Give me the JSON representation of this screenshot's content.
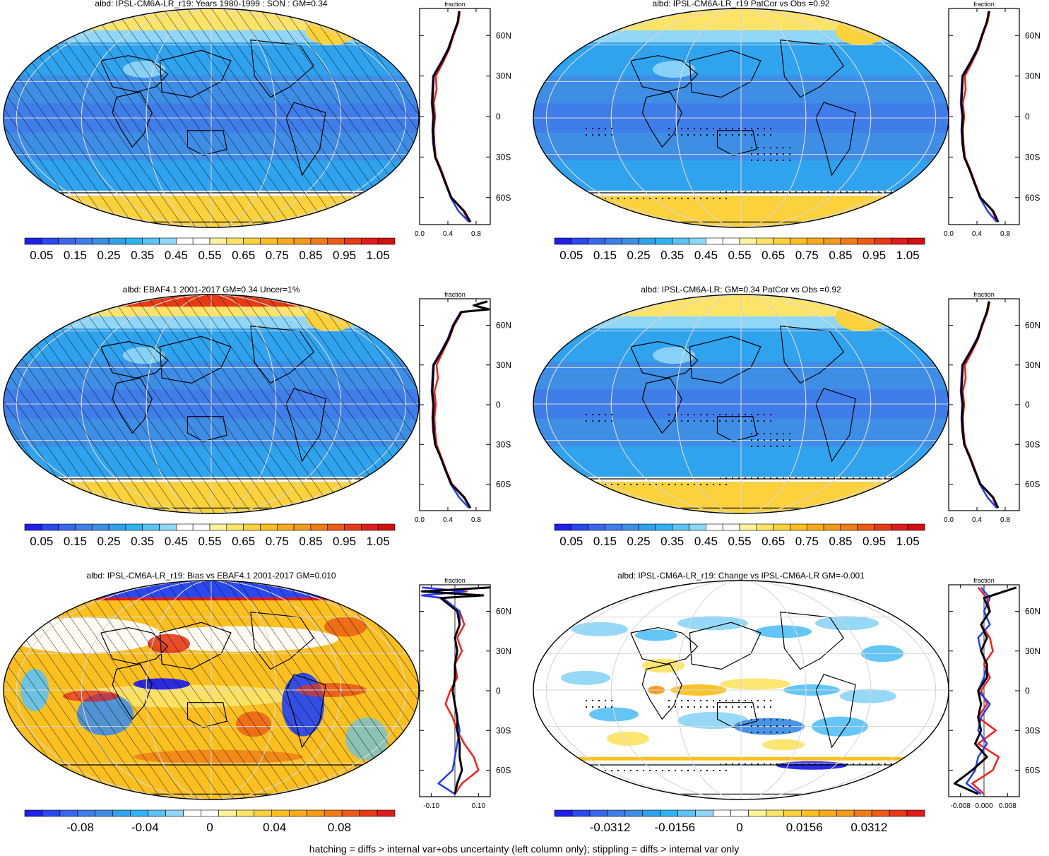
{
  "footer": "hatching = diffs > internal var+obs uncertainty (left column only); stippling = diffs > internal var only",
  "colors": {
    "ocean_low": "#3f7de8",
    "ocean_mid": "#2fa3ee",
    "ocean_light": "#8ccff6",
    "ice": "#fbd23c",
    "warm": "#f39a1a",
    "hot": "#e01b1b",
    "line_red": "#ff1a1a",
    "line_blue": "#1f3dff",
    "line_black": "#000000"
  },
  "colorbars": {
    "abs": {
      "colors": [
        "#2020e8",
        "#2a48ee",
        "#3a66ee",
        "#3f7de8",
        "#3e8ee6",
        "#2fa3ee",
        "#2db3f2",
        "#5cc3f5",
        "#8fd6f7",
        "#ffffff",
        "#ffffff",
        "#fff29c",
        "#fde469",
        "#fbd23c",
        "#fbc020",
        "#f9aa1a",
        "#f39a1a",
        "#f07c16",
        "#ec5a14",
        "#e63a14",
        "#e01b1b",
        "#d40f0f"
      ],
      "labels": [
        "0.05",
        "0.15",
        "0.25",
        "0.35",
        "0.45",
        "0.55",
        "0.65",
        "0.75",
        "0.85",
        "0.95",
        "1.05"
      ]
    },
    "bias": {
      "colors": [
        "#2020e8",
        "#2a48ee",
        "#3a66ee",
        "#3f7de8",
        "#3e8ee6",
        "#2fa3ee",
        "#2db3f2",
        "#5cc3f5",
        "#8fd6f7",
        "#ffffff",
        "#ffffff",
        "#fff29c",
        "#fde469",
        "#fbd23c",
        "#fbc020",
        "#f9aa1a",
        "#f39a1a",
        "#f07c16",
        "#ec5a14",
        "#e63a14",
        "#e01b1b"
      ],
      "labels": [
        "-0.08",
        "-0.04",
        "0",
        "0.04",
        "0.08"
      ]
    },
    "change": {
      "colors": [
        "#2020e8",
        "#2a48ee",
        "#3a66ee",
        "#3f7de8",
        "#3e8ee6",
        "#2fa3ee",
        "#2db3f2",
        "#5cc3f5",
        "#8fd6f7",
        "#ffffff",
        "#ffffff",
        "#fff29c",
        "#fde469",
        "#fbd23c",
        "#fbc020",
        "#f9aa1a",
        "#f39a1a",
        "#f07c16",
        "#ec5a14",
        "#e63a14",
        "#e01b1b"
      ],
      "labels": [
        "-0.0312",
        "-0.0156",
        "0",
        "0.0156",
        "0.0312"
      ]
    }
  },
  "chart_data": [
    {
      "type": "heatmap",
      "title": "albd: IPSL-CM6A-LR_r19: Years 1980-1999 : SON : GM=0.34",
      "theme": "abs",
      "hatched": true,
      "stippled": false,
      "profile": {
        "axis_label": "fraction",
        "xlim": [
          0.0,
          1.0
        ],
        "xticks": [
          "0.0",
          "0.4",
          "0.8"
        ],
        "lat_ticks": [
          "60N",
          "30N",
          "0",
          "30S",
          "60S"
        ],
        "series": [
          {
            "color": "red",
            "lat": [
              78,
              70,
              60,
              50,
              40,
              30,
              20,
              10,
              0,
              -10,
              -20,
              -30,
              -40,
              -50,
              -60,
              -70,
              -78
            ],
            "values": [
              0.57,
              0.55,
              0.48,
              0.42,
              0.33,
              0.23,
              0.24,
              0.2,
              0.22,
              0.2,
              0.21,
              0.23,
              0.31,
              0.38,
              0.45,
              0.62,
              0.7
            ]
          },
          {
            "color": "blue",
            "lat": [
              78,
              70,
              60,
              50,
              40,
              30,
              20,
              10,
              0,
              -10,
              -20,
              -30,
              -40,
              -50,
              -60,
              -70,
              -78
            ],
            "values": [
              0.56,
              0.54,
              0.47,
              0.4,
              0.3,
              0.19,
              0.18,
              0.17,
              0.19,
              0.18,
              0.19,
              0.22,
              0.3,
              0.37,
              0.44,
              0.55,
              0.7
            ]
          },
          {
            "color": "black",
            "lat": [
              78,
              70,
              60,
              50,
              40,
              30,
              20,
              10,
              0,
              -10,
              -20,
              -30,
              -40,
              -50,
              -60,
              -70,
              -78
            ],
            "values": [
              0.56,
              0.54,
              0.47,
              0.41,
              0.31,
              0.2,
              0.19,
              0.18,
              0.2,
              0.19,
              0.2,
              0.22,
              0.3,
              0.37,
              0.45,
              0.63,
              0.72
            ]
          }
        ]
      }
    },
    {
      "type": "heatmap",
      "title": "albd: IPSL-CM6A-LR_r19 PatCor vs Obs =0.92",
      "theme": "abs",
      "hatched": false,
      "stippled": true,
      "profile": {
        "axis_label": "fraction",
        "xlim": [
          0.0,
          1.0
        ],
        "xticks": [
          "0.0",
          "0.4",
          "0.8"
        ],
        "lat_ticks": [
          "60N",
          "30N",
          "0",
          "30S",
          "60S"
        ],
        "series": [
          {
            "color": "red",
            "lat": [
              78,
              70,
              60,
              50,
              40,
              30,
              20,
              10,
              0,
              -10,
              -20,
              -30,
              -40,
              -50,
              -60,
              -70,
              -78
            ],
            "values": [
              0.58,
              0.55,
              0.48,
              0.42,
              0.33,
              0.23,
              0.24,
              0.2,
              0.22,
              0.2,
              0.21,
              0.23,
              0.31,
              0.38,
              0.45,
              0.62,
              0.68
            ]
          },
          {
            "color": "blue",
            "lat": [
              78,
              70,
              60,
              50,
              40,
              30,
              20,
              10,
              0,
              -10,
              -20,
              -30,
              -40,
              -50,
              -60,
              -70,
              -78
            ],
            "values": [
              0.57,
              0.54,
              0.47,
              0.4,
              0.3,
              0.19,
              0.18,
              0.17,
              0.19,
              0.18,
              0.19,
              0.22,
              0.3,
              0.37,
              0.44,
              0.55,
              0.68
            ]
          },
          {
            "color": "black",
            "lat": [
              78,
              70,
              60,
              50,
              40,
              30,
              20,
              10,
              0,
              -10,
              -20,
              -30,
              -40,
              -50,
              -60,
              -70,
              -78
            ],
            "values": [
              0.57,
              0.54,
              0.47,
              0.41,
              0.31,
              0.2,
              0.19,
              0.18,
              0.2,
              0.19,
              0.2,
              0.22,
              0.3,
              0.37,
              0.45,
              0.63,
              0.7
            ]
          }
        ]
      }
    },
    {
      "type": "heatmap",
      "title": "albd: EBAF4.1 2001-2017 GM=0.34 Uncer=1%",
      "theme": "abs",
      "hatched": true,
      "stippled": false,
      "profile": {
        "axis_label": "fraction",
        "xlim": [
          0.0,
          1.0
        ],
        "xticks": [
          "0.0",
          "0.4",
          "0.8"
        ],
        "lat_ticks": [
          "60N",
          "30N",
          "0",
          "30S",
          "60S"
        ],
        "series": [
          {
            "color": "red",
            "lat": [
              78,
              75,
              72,
              70,
              60,
              50,
              40,
              30,
              20,
              10,
              0,
              -10,
              -20,
              -30,
              -40,
              -50,
              -60,
              -70,
              -78
            ],
            "values": [
              0.95,
              0.78,
              0.98,
              0.6,
              0.49,
              0.42,
              0.33,
              0.24,
              0.26,
              0.21,
              0.23,
              0.21,
              0.22,
              0.24,
              0.31,
              0.38,
              0.46,
              0.64,
              0.72
            ]
          },
          {
            "color": "blue",
            "lat": [
              78,
              75,
              72,
              70,
              60,
              50,
              40,
              30,
              20,
              10,
              0,
              -10,
              -20,
              -30,
              -40,
              -50,
              -60,
              -70,
              -78
            ],
            "values": [
              0.94,
              0.76,
              0.97,
              0.58,
              0.47,
              0.4,
              0.3,
              0.19,
              0.18,
              0.17,
              0.19,
              0.18,
              0.19,
              0.22,
              0.3,
              0.37,
              0.44,
              0.56,
              0.7
            ]
          },
          {
            "color": "black",
            "lat": [
              78,
              75,
              72,
              70,
              60,
              50,
              40,
              30,
              20,
              10,
              0,
              -10,
              -20,
              -30,
              -40,
              -50,
              -60,
              -70,
              -78
            ],
            "values": [
              0.96,
              0.77,
              0.98,
              0.59,
              0.48,
              0.41,
              0.31,
              0.2,
              0.19,
              0.18,
              0.2,
              0.19,
              0.2,
              0.22,
              0.3,
              0.37,
              0.45,
              0.63,
              0.72
            ]
          }
        ]
      }
    },
    {
      "type": "heatmap",
      "title": "albd: IPSL-CM6A-LR: GM=0.34 PatCor vs Obs =0.92",
      "theme": "abs",
      "hatched": false,
      "stippled": true,
      "profile": {
        "axis_label": "fraction",
        "xlim": [
          0.0,
          1.0
        ],
        "xticks": [
          "0.0",
          "0.4",
          "0.8"
        ],
        "lat_ticks": [
          "60N",
          "30N",
          "0",
          "30S",
          "60S"
        ],
        "series": [
          {
            "color": "red",
            "lat": [
              78,
              70,
              60,
              50,
              40,
              30,
              20,
              10,
              0,
              -10,
              -20,
              -30,
              -40,
              -50,
              -60,
              -70,
              -78
            ],
            "values": [
              0.58,
              0.55,
              0.48,
              0.42,
              0.33,
              0.23,
              0.24,
              0.2,
              0.22,
              0.2,
              0.21,
              0.23,
              0.31,
              0.38,
              0.45,
              0.62,
              0.68
            ]
          },
          {
            "color": "blue",
            "lat": [
              78,
              70,
              60,
              50,
              40,
              30,
              20,
              10,
              0,
              -10,
              -20,
              -30,
              -40,
              -50,
              -60,
              -70,
              -78
            ],
            "values": [
              0.57,
              0.54,
              0.47,
              0.4,
              0.3,
              0.19,
              0.18,
              0.17,
              0.19,
              0.18,
              0.19,
              0.22,
              0.3,
              0.37,
              0.44,
              0.55,
              0.68
            ]
          },
          {
            "color": "black",
            "lat": [
              78,
              70,
              60,
              50,
              40,
              30,
              20,
              10,
              0,
              -10,
              -20,
              -30,
              -40,
              -50,
              -60,
              -70,
              -78
            ],
            "values": [
              0.57,
              0.54,
              0.47,
              0.41,
              0.31,
              0.2,
              0.19,
              0.18,
              0.2,
              0.19,
              0.2,
              0.22,
              0.3,
              0.37,
              0.45,
              0.63,
              0.7
            ]
          }
        ]
      }
    },
    {
      "type": "heatmap",
      "title": "albd: IPSL-CM6A-LR_r19: Bias vs EBAF4.1 2001-2017  GM=0.010",
      "theme": "bias",
      "hatched": true,
      "stippled": false,
      "profile": {
        "axis_label": "fraction",
        "xlim": [
          -0.15,
          0.15
        ],
        "xticks": [
          "-0.10",
          "0.10"
        ],
        "lat_ticks": [
          "60N",
          "30N",
          "0",
          "30S",
          "60S"
        ],
        "series": [
          {
            "color": "red",
            "lat": [
              78,
              75,
              72,
              70,
              60,
              50,
              40,
              30,
              20,
              10,
              0,
              -10,
              -20,
              -30,
              -40,
              -50,
              -60,
              -70,
              -78
            ],
            "values": [
              -0.14,
              0.05,
              -0.14,
              -0.06,
              0.02,
              0.04,
              0.01,
              0.03,
              0.0,
              0.01,
              -0.02,
              -0.04,
              -0.01,
              0.01,
              0.04,
              0.08,
              0.1,
              0.03,
              0.0
            ]
          },
          {
            "color": "blue",
            "lat": [
              78,
              75,
              72,
              70,
              60,
              50,
              40,
              30,
              20,
              10,
              0,
              -10,
              -20,
              -30,
              -40,
              -50,
              -60,
              -70,
              -78
            ],
            "values": [
              -0.14,
              0.04,
              -0.14,
              -0.05,
              0.02,
              0.02,
              0.0,
              0.01,
              0.0,
              0.0,
              -0.01,
              0.0,
              0.01,
              0.02,
              0.01,
              0.0,
              -0.01,
              -0.07,
              0.0
            ]
          },
          {
            "color": "black",
            "lat": [
              78,
              75,
              72,
              70,
              60,
              50,
              40,
              30,
              20,
              10,
              0,
              -10,
              -20,
              -30,
              -40,
              -50,
              -60,
              -70,
              -78
            ],
            "values": [
              0.15,
              -0.14,
              0.12,
              -0.06,
              0.01,
              0.02,
              0.0,
              0.01,
              0.0,
              0.0,
              -0.01,
              0.0,
              0.01,
              0.01,
              0.02,
              0.02,
              0.03,
              0.01,
              0.0
            ]
          }
        ]
      }
    },
    {
      "type": "heatmap",
      "title": "albd: IPSL-CM6A-LR_r19: Change vs IPSL-CM6A-LR GM=-0.001",
      "theme": "change",
      "hatched": false,
      "stippled": true,
      "profile": {
        "axis_label": "fraction",
        "xlim": [
          -0.012,
          0.012
        ],
        "xticks": [
          "-0.008",
          "0.000",
          "0.008"
        ],
        "lat_ticks": [
          "60N",
          "30N",
          "0",
          "30S",
          "60S"
        ],
        "series": [
          {
            "color": "red",
            "lat": [
              78,
              70,
              60,
              50,
              40,
              30,
              20,
              10,
              0,
              -10,
              -20,
              -30,
              -40,
              -50,
              -60,
              -70,
              -78
            ],
            "values": [
              -0.002,
              0.001,
              0.002,
              -0.001,
              0.002,
              0.003,
              0.0,
              0.002,
              -0.001,
              0.001,
              -0.002,
              0.004,
              -0.002,
              0.005,
              0.003,
              -0.004,
              0.0
            ]
          },
          {
            "color": "blue",
            "lat": [
              78,
              70,
              60,
              50,
              40,
              30,
              20,
              10,
              0,
              -10,
              -20,
              -30,
              -40,
              -50,
              -60,
              -70,
              -78
            ],
            "values": [
              -0.001,
              0.002,
              0.0,
              0.002,
              -0.002,
              -0.001,
              0.001,
              0.0,
              -0.002,
              0.002,
              -0.001,
              -0.002,
              0.001,
              -0.002,
              -0.003,
              -0.006,
              -0.001
            ]
          },
          {
            "color": "black",
            "lat": [
              78,
              70,
              60,
              50,
              40,
              30,
              20,
              10,
              0,
              -10,
              -20,
              -30,
              -40,
              -50,
              -60,
              -70,
              -78
            ],
            "values": [
              0.011,
              0.0,
              0.002,
              -0.001,
              0.001,
              -0.001,
              0.001,
              0.001,
              -0.002,
              -0.001,
              -0.002,
              -0.001,
              -0.003,
              0.001,
              -0.004,
              -0.01,
              -0.002
            ]
          }
        ]
      }
    }
  ]
}
